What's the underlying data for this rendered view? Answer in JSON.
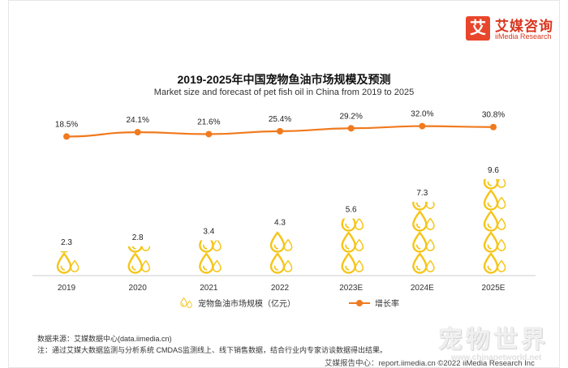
{
  "logo": {
    "mark": "艾",
    "cn": "艾媒咨询",
    "en": "iiMedia Research"
  },
  "chart_data": {
    "type": "bar",
    "title": "2019-2025年中国宠物鱼油市场规模及预测",
    "subtitle": "Market size and forecast of pet fish oil in China from 2019 to 2025",
    "categories": [
      "2019",
      "2020",
      "2021",
      "2022",
      "2023E",
      "2024E",
      "2025E"
    ],
    "series": [
      {
        "name": "宠物鱼油市场规模（亿元）",
        "kind": "pictogram-bar",
        "values": [
          2.3,
          2.8,
          3.4,
          4.3,
          5.6,
          7.3,
          9.6
        ],
        "labels": [
          "2.3",
          "2.8",
          "3.4",
          "4.3",
          "5.6",
          "7.3",
          "9.6"
        ]
      },
      {
        "name": "增长率",
        "kind": "line",
        "values": [
          18.5,
          24.1,
          21.6,
          25.4,
          29.2,
          32.0,
          30.8
        ],
        "labels": [
          "18.5%",
          "24.1%",
          "21.6%",
          "25.4%",
          "29.2%",
          "32.0%",
          "30.8%"
        ]
      }
    ],
    "bar_ylim": [
      0,
      10
    ],
    "line_ylim": [
      -160,
      40
    ]
  },
  "colors": {
    "line": "#f07a1e",
    "drop": "#f5c518",
    "axis": "#cccccc"
  },
  "source": "数据来源：艾媒数据中心(data.iimedia.cn)",
  "note": "注：通过艾媒大数据监测与分析系统 CMDAS监测线上、线下销售数据，结合行业内专家访谈数据得出结果。",
  "footer": "艾媒报告中心：report.iimedia.cn  ©2022 iiMedia Research Inc",
  "watermark": {
    "text": "宠物世界",
    "url": "www.chinapetworld.net"
  }
}
